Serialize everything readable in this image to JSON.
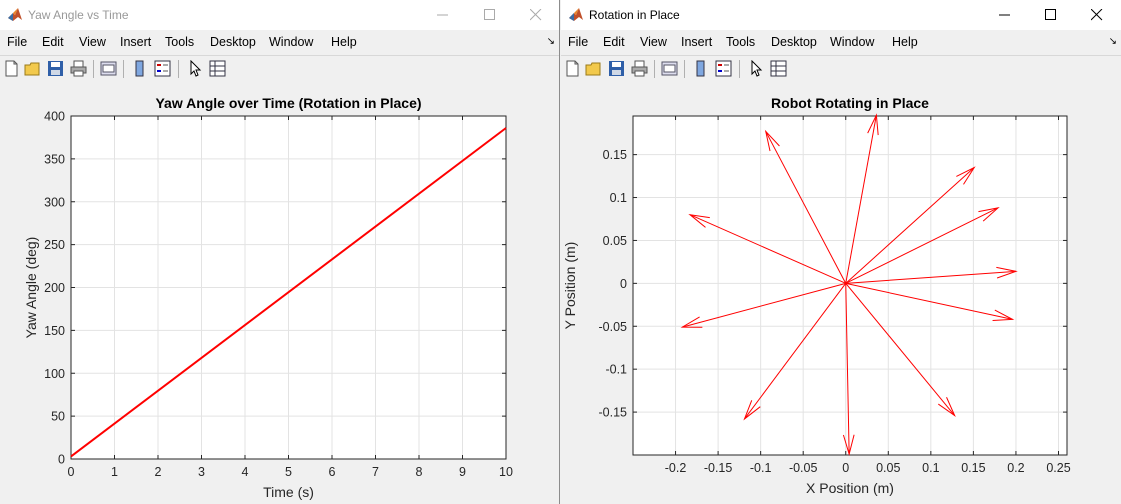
{
  "windows": [
    {
      "title": "Yaw Angle vs Time",
      "active": false,
      "menu": [
        "File",
        "Edit",
        "View",
        "Insert",
        "Tools",
        "Desktop",
        "Window",
        "Help"
      ]
    },
    {
      "title": "Rotation in Place",
      "active": true,
      "menu": [
        "File",
        "Edit",
        "View",
        "Insert",
        "Tools",
        "Desktop",
        "Window",
        "Help"
      ]
    }
  ],
  "colors": {
    "plot_line": "#ff0000",
    "grid": "#e3e3e3",
    "axes_bg": "#ffffff",
    "figure_bg": "#f0f0f0"
  },
  "chart_data": [
    {
      "type": "line",
      "title": "Yaw Angle over Time (Rotation in Place)",
      "xlabel": "Time (s)",
      "ylabel": "Yaw Angle (deg)",
      "xlim": [
        0,
        10
      ],
      "ylim": [
        0,
        400
      ],
      "xticks": [
        0,
        1,
        2,
        3,
        4,
        5,
        6,
        7,
        8,
        9,
        10
      ],
      "yticks": [
        0,
        50,
        100,
        150,
        200,
        250,
        300,
        350,
        400
      ],
      "grid": true,
      "series": [
        {
          "x": [
            0,
            10
          ],
          "y": [
            3,
            386
          ]
        }
      ]
    },
    {
      "type": "quiver",
      "title": "Robot Rotating in Place",
      "xlabel": "X Position (m)",
      "ylabel": "Y Position (m)",
      "xlim": [
        -0.25,
        0.26
      ],
      "ylim": [
        -0.2,
        0.195
      ],
      "xticks": [
        -0.2,
        -0.15,
        -0.1,
        -0.05,
        0,
        0.05,
        0.1,
        0.15,
        0.2,
        0.25
      ],
      "xtick_labels": [
        "-0.2",
        "-0.15",
        "-0.1",
        "-0.05",
        "0",
        "0.05",
        "0.1",
        "0.15",
        "0.2",
        "0.25"
      ],
      "yticks": [
        -0.15,
        -0.1,
        -0.05,
        0,
        0.05,
        0.1,
        0.15
      ],
      "ytick_labels": [
        "-0.15",
        "-0.1",
        "-0.05",
        "0",
        "0.05",
        "0.1",
        "0.15"
      ],
      "grid": true,
      "origin": [
        0,
        0
      ],
      "arrows": [
        {
          "u": 0.2,
          "v": 0.014
        },
        {
          "u": 0.179,
          "v": 0.088
        },
        {
          "u": 0.151,
          "v": 0.135
        },
        {
          "u": 0.036,
          "v": 0.196
        },
        {
          "u": -0.094,
          "v": 0.177
        },
        {
          "u": -0.183,
          "v": 0.08
        },
        {
          "u": -0.192,
          "v": -0.051
        },
        {
          "u": -0.119,
          "v": -0.158
        },
        {
          "u": 0.004,
          "v": -0.199
        },
        {
          "u": 0.128,
          "v": -0.154
        },
        {
          "u": 0.196,
          "v": -0.042
        }
      ]
    }
  ]
}
